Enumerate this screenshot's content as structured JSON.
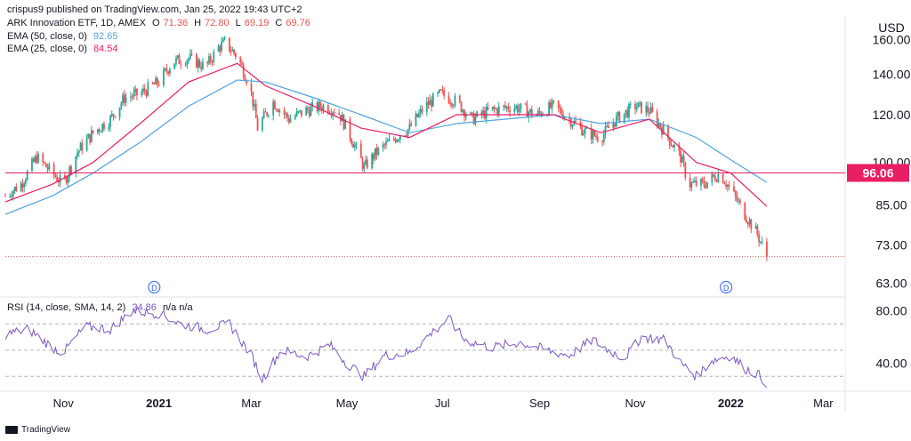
{
  "publisher_line": "crispus9 published on TradingView.com, Jan 25, 2022 19:43 UTC+2",
  "footer_brand": "TradingView",
  "currency": "USD",
  "colors": {
    "up": "#26a69a",
    "down": "#ef5350",
    "ema50": "#4fa3e0",
    "ema25": "#e91e63",
    "rsi": "#7e57c2",
    "level_line": "#e91e63",
    "last_price_line": "#ef5350"
  },
  "legend": {
    "symbol": "ARK Innovation ETF, 1D, AMEX",
    "open_k": "O",
    "open": "71.36",
    "high_k": "H",
    "high": "72.80",
    "low_k": "L",
    "low": "69.19",
    "close_k": "C",
    "close": "69.76",
    "ema50_label": "EMA (50, close, 0)",
    "ema50_value": "92.65",
    "ema25_label": "EMA (25, close, 0)",
    "ema25_value": "84.54",
    "rsi_label": "RSI (14, close, SMA, 14, 2)",
    "rsi_value": "24.86",
    "rsi_na": "n/a n/a"
  },
  "chart_data": [
    {
      "type": "candlestick",
      "title": "ARK Innovation ETF, 1D, AMEX",
      "y_scale": "log",
      "ylim": [
        60,
        168
      ],
      "y_ticks": [
        "160.00",
        "140.00",
        "120.00",
        "100.00",
        "85.00",
        "73.00",
        "63.00"
      ],
      "y_tick_values": [
        160,
        140,
        120,
        100,
        85,
        73,
        63
      ],
      "x_ticks": [
        "Nov",
        "2021",
        "Mar",
        "May",
        "Jul",
        "Sep",
        "Nov",
        "2022",
        "Mar"
      ],
      "x_tick_dates": [
        "2020-11-01",
        "2021-01-01",
        "2021-03-01",
        "2021-05-01",
        "2021-07-01",
        "2021-09-01",
        "2021-11-01",
        "2022-01-01",
        "2022-03-01"
      ],
      "x_range": [
        "2020-09-25",
        "2022-03-15"
      ],
      "level_line": {
        "value": 96.06,
        "label": "96.06"
      },
      "last_close": 69.76,
      "dividend_markers": [
        {
          "date": "2020-12-29",
          "label": "D"
        },
        {
          "date": "2021-12-29",
          "label": "D"
        }
      ],
      "series": [
        {
          "name": "ARK Innovation ETF",
          "close_path": [
            [
              "2020-09-25",
              88
            ],
            [
              "2020-10-05",
              92
            ],
            [
              "2020-10-15",
              102
            ],
            [
              "2020-10-25",
              96
            ],
            [
              "2020-11-01",
              92
            ],
            [
              "2020-11-10",
              104
            ],
            [
              "2020-11-20",
              112
            ],
            [
              "2020-12-01",
              118
            ],
            [
              "2020-12-10",
              128
            ],
            [
              "2020-12-20",
              130
            ],
            [
              "2021-01-01",
              136
            ],
            [
              "2021-01-10",
              147
            ],
            [
              "2021-01-20",
              149
            ],
            [
              "2021-01-31",
              144
            ],
            [
              "2021-02-08",
              155
            ],
            [
              "2021-02-12",
              158
            ],
            [
              "2021-02-20",
              150
            ],
            [
              "2021-02-28",
              134
            ],
            [
              "2021-03-05",
              114
            ],
            [
              "2021-03-15",
              126
            ],
            [
              "2021-03-25",
              118
            ],
            [
              "2021-04-05",
              122
            ],
            [
              "2021-04-15",
              124
            ],
            [
              "2021-04-25",
              122
            ],
            [
              "2021-05-05",
              108
            ],
            [
              "2021-05-12",
              98
            ],
            [
              "2021-05-20",
              104
            ],
            [
              "2021-06-01",
              110
            ],
            [
              "2021-06-10",
              114
            ],
            [
              "2021-06-20",
              124
            ],
            [
              "2021-06-30",
              130
            ],
            [
              "2021-07-10",
              126
            ],
            [
              "2021-07-20",
              118
            ],
            [
              "2021-08-01",
              122
            ],
            [
              "2021-08-15",
              124
            ],
            [
              "2021-08-30",
              120
            ],
            [
              "2021-09-10",
              124
            ],
            [
              "2021-09-20",
              118
            ],
            [
              "2021-10-01",
              112
            ],
            [
              "2021-10-10",
              110
            ],
            [
              "2021-10-20",
              118
            ],
            [
              "2021-11-01",
              124
            ],
            [
              "2021-11-10",
              122
            ],
            [
              "2021-11-20",
              112
            ],
            [
              "2021-11-30",
              102
            ],
            [
              "2021-12-05",
              92
            ],
            [
              "2021-12-15",
              92
            ],
            [
              "2021-12-25",
              96
            ],
            [
              "2022-01-01",
              90
            ],
            [
              "2022-01-10",
              82
            ],
            [
              "2022-01-18",
              76
            ],
            [
              "2022-01-24",
              69.76
            ]
          ]
        },
        {
          "name": "EMA (50, close, 0)",
          "path": [
            [
              "2020-09-25",
              82
            ],
            [
              "2020-10-25",
              88
            ],
            [
              "2020-11-20",
              96
            ],
            [
              "2020-12-20",
              108
            ],
            [
              "2021-01-20",
              124
            ],
            [
              "2021-02-20",
              137
            ],
            [
              "2021-03-10",
              136
            ],
            [
              "2021-04-10",
              128
            ],
            [
              "2021-05-10",
              120
            ],
            [
              "2021-06-10",
              112
            ],
            [
              "2021-07-10",
              116
            ],
            [
              "2021-08-10",
              118
            ],
            [
              "2021-09-10",
              120
            ],
            [
              "2021-10-10",
              116
            ],
            [
              "2021-11-10",
              118
            ],
            [
              "2021-12-10",
              110
            ],
            [
              "2022-01-01",
              101
            ],
            [
              "2022-01-24",
              92.65
            ]
          ]
        },
        {
          "name": "EMA (25, close, 0)",
          "path": [
            [
              "2020-09-25",
              86
            ],
            [
              "2020-10-25",
              92
            ],
            [
              "2020-11-20",
              100
            ],
            [
              "2020-12-20",
              116
            ],
            [
              "2021-01-20",
              136
            ],
            [
              "2021-02-20",
              146
            ],
            [
              "2021-03-10",
              134
            ],
            [
              "2021-04-10",
              124
            ],
            [
              "2021-05-10",
              114
            ],
            [
              "2021-06-10",
              110
            ],
            [
              "2021-07-10",
              120
            ],
            [
              "2021-08-10",
              120
            ],
            [
              "2021-09-10",
              120
            ],
            [
              "2021-10-10",
              112
            ],
            [
              "2021-11-10",
              118
            ],
            [
              "2021-12-10",
              100
            ],
            [
              "2022-01-01",
              96
            ],
            [
              "2022-01-24",
              84.54
            ]
          ]
        }
      ]
    },
    {
      "type": "line",
      "title": "RSI (14, close, SMA, 14, 2)",
      "ylim": [
        20,
        90
      ],
      "y_ticks": [
        "80.00",
        "40.00"
      ],
      "y_tick_values": [
        80,
        40
      ],
      "bands": [
        70,
        50,
        30
      ],
      "series": [
        {
          "name": "RSI",
          "path": [
            [
              "2020-09-25",
              62
            ],
            [
              "2020-10-10",
              66
            ],
            [
              "2020-10-25",
              52
            ],
            [
              "2020-11-01",
              48
            ],
            [
              "2020-11-15",
              68
            ],
            [
              "2020-12-01",
              66
            ],
            [
              "2020-12-15",
              80
            ],
            [
              "2021-01-01",
              78
            ],
            [
              "2021-01-15",
              70
            ],
            [
              "2021-02-01",
              66
            ],
            [
              "2021-02-15",
              70
            ],
            [
              "2021-03-01",
              46
            ],
            [
              "2021-03-08",
              28
            ],
            [
              "2021-03-20",
              50
            ],
            [
              "2021-04-05",
              45
            ],
            [
              "2021-04-20",
              54
            ],
            [
              "2021-05-01",
              40
            ],
            [
              "2021-05-12",
              30
            ],
            [
              "2021-05-25",
              46
            ],
            [
              "2021-06-10",
              48
            ],
            [
              "2021-06-25",
              64
            ],
            [
              "2021-07-05",
              74
            ],
            [
              "2021-07-15",
              58
            ],
            [
              "2021-08-01",
              52
            ],
            [
              "2021-08-20",
              56
            ],
            [
              "2021-09-05",
              50
            ],
            [
              "2021-09-20",
              46
            ],
            [
              "2021-10-05",
              58
            ],
            [
              "2021-10-15",
              50
            ],
            [
              "2021-10-25",
              44
            ],
            [
              "2021-11-05",
              60
            ],
            [
              "2021-11-20",
              58
            ],
            [
              "2021-11-30",
              40
            ],
            [
              "2021-12-10",
              30
            ],
            [
              "2021-12-20",
              42
            ],
            [
              "2022-01-01",
              46
            ],
            [
              "2022-01-10",
              36
            ],
            [
              "2022-01-18",
              32
            ],
            [
              "2022-01-24",
              24.86
            ]
          ]
        }
      ]
    }
  ]
}
